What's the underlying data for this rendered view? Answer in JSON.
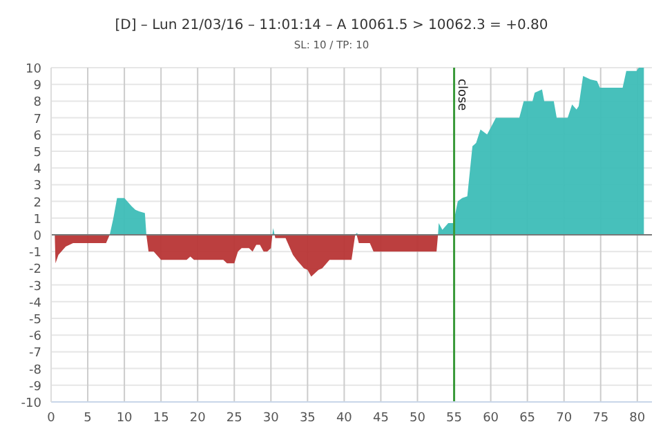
{
  "chart_data": {
    "type": "area",
    "title": "[D] – Lun 21/03/16 – 11:01:14 – A 10061.5 > 10062.3 = +0.80",
    "subtitle": "SL: 10 / TP: 10",
    "x": [
      0.5,
      0.6,
      1,
      2,
      3,
      7.5,
      8,
      8.5,
      9,
      10,
      11,
      11.5,
      12,
      12.8,
      13,
      13.3,
      14,
      15,
      18.5,
      19,
      19.5,
      23.5,
      24,
      25,
      25.5,
      26,
      27,
      27.5,
      28,
      28.5,
      29,
      29.5,
      30,
      30.2,
      30.3,
      30.5,
      30.6,
      32,
      33,
      33.5,
      34.5,
      35,
      35.5,
      36.5,
      37,
      38,
      41,
      41.5,
      41.7,
      42,
      43.5,
      44,
      52.6,
      52.8,
      52.9,
      53.4,
      54.2,
      54.9,
      55.5,
      56.1,
      56.8,
      57.5,
      58,
      58.6,
      59.5,
      60.1,
      60.7,
      63.9,
      64.5,
      65.7,
      66,
      67,
      67.3,
      68.6,
      69,
      70.5,
      71.1,
      71.7,
      72,
      72.6,
      73.6,
      74.5,
      74.9,
      78,
      78.5,
      79.9,
      80.2,
      80.9
    ],
    "series": [
      {
        "color": "#3dbdb7",
        "values": [
          0,
          0,
          0,
          0,
          0,
          0,
          0,
          1,
          2.2,
          2.2,
          1.7,
          1.5,
          1.4,
          1.3,
          0,
          0,
          0,
          0,
          0,
          0,
          0,
          0,
          0,
          0,
          0,
          0,
          0,
          0,
          0,
          0,
          0,
          0,
          0,
          0,
          0.4,
          0,
          0,
          0,
          0,
          0,
          0,
          0,
          0,
          0,
          0,
          0,
          0,
          0,
          0.1,
          0,
          0,
          0,
          0,
          0,
          0.7,
          0.3,
          0.7,
          0.7,
          2,
          2.2,
          2.3,
          5.3,
          5.5,
          6.3,
          6,
          6.5,
          7,
          7,
          8,
          8,
          8.5,
          8.7,
          8,
          8,
          7,
          7,
          7.8,
          7.5,
          7.7,
          9.5,
          9.3,
          9.2,
          8.8,
          8.8,
          9.8,
          9.8,
          10,
          10
        ]
      },
      {
        "color": "#b83535",
        "values": [
          0,
          -1.7,
          -1.2,
          -0.7,
          -0.5,
          -0.5,
          0,
          0,
          0,
          0,
          0,
          0,
          0,
          0,
          0,
          -1,
          -1,
          -1.5,
          -1.5,
          -1.3,
          -1.5,
          -1.5,
          -1.7,
          -1.7,
          -1,
          -0.8,
          -0.8,
          -1,
          -0.6,
          -0.6,
          -1,
          -1,
          -0.8,
          0,
          0,
          0,
          -0.2,
          -0.2,
          -1.2,
          -1.5,
          -2,
          -2.1,
          -2.5,
          -2.1,
          -2,
          -1.5,
          -1.5,
          0,
          0,
          -0.5,
          -0.5,
          -1,
          -1,
          0,
          0,
          0,
          0,
          0,
          0,
          0,
          0,
          0,
          0,
          0,
          0,
          0,
          0,
          0,
          0,
          0,
          0,
          0,
          0,
          0,
          0,
          0,
          0,
          0,
          0,
          0,
          0,
          0,
          0,
          0,
          0,
          0,
          0,
          0
        ]
      }
    ],
    "xlim": [
      0,
      82
    ],
    "xticks": [
      0,
      5,
      10,
      15,
      20,
      25,
      30,
      35,
      40,
      45,
      50,
      55,
      60,
      65,
      70,
      75,
      80
    ],
    "ylim": [
      -10,
      10
    ],
    "yticks": [
      -10,
      -9,
      -8,
      -7,
      -6,
      -5,
      -4,
      -3,
      -2,
      -1,
      0,
      1,
      2,
      3,
      4,
      5,
      6,
      7,
      8,
      9,
      10
    ],
    "grid": true,
    "ref_lines": [
      {
        "axis": "y",
        "value": 0,
        "color": "#777777"
      },
      {
        "axis": "x",
        "value": 55,
        "label": "close",
        "color": "#3a9a3a"
      }
    ]
  }
}
